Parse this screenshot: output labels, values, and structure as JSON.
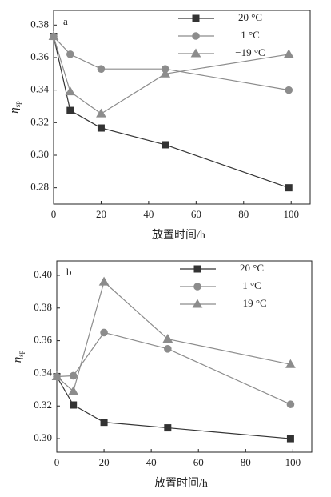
{
  "chart_data": [
    {
      "type": "line",
      "annotation": "a",
      "x_label": "放置时间/h",
      "y_label": "η",
      "y_label_sub": "sp",
      "x": [
        0,
        7,
        20,
        47,
        99
      ],
      "series": [
        {
          "name": "20 °C",
          "color": "#333333",
          "marker": "square",
          "values": [
            0.373,
            0.3275,
            0.3167,
            0.3064,
            0.28
          ]
        },
        {
          "name": "1 °C",
          "color": "#8c8c8c",
          "marker": "circle",
          "values": [
            0.373,
            0.362,
            0.353,
            0.353,
            0.34
          ]
        },
        {
          "name": "−19 °C",
          "color": "#8c8c8c",
          "marker": "triangle",
          "values": [
            0.373,
            0.339,
            0.3255,
            0.35,
            0.362
          ]
        }
      ],
      "xlim": [
        0,
        108
      ],
      "xticks": [
        0,
        20,
        40,
        60,
        80,
        100
      ],
      "ylim": [
        0.27,
        0.389
      ],
      "yticks": [
        0.28,
        {
          "value": 0.3,
          "label": "0.30"
        },
        0.32,
        0.34,
        0.36,
        0.38
      ],
      "grid": false,
      "legend": "upper right"
    },
    {
      "type": "line",
      "annotation": "b",
      "x_label": "放置时间/h",
      "y_label": "η",
      "y_label_sub": "sp",
      "x": [
        0,
        7,
        20,
        47,
        99
      ],
      "series": [
        {
          "name": "20 °C",
          "color": "#333333",
          "marker": "square",
          "values": [
            0.338,
            0.3206,
            0.31,
            0.3066,
            0.3
          ]
        },
        {
          "name": "1 °C",
          "color": "#8c8c8c",
          "marker": "circle",
          "values": [
            0.338,
            0.3385,
            0.365,
            0.355,
            0.321
          ]
        },
        {
          "name": "−19 °C",
          "color": "#8c8c8c",
          "marker": "triangle",
          "values": [
            0.338,
            0.329,
            0.396,
            0.361,
            0.3455
          ]
        }
      ],
      "xlim": [
        0,
        108
      ],
      "xticks": [
        0,
        20,
        40,
        60,
        80,
        100
      ],
      "ylim": [
        0.2917,
        0.4088
      ],
      "yticks": [
        {
          "value": 0.3,
          "label": "0.30"
        },
        0.32,
        0.34,
        0.36,
        0.38,
        {
          "value": 0.4,
          "label": "0.40"
        }
      ],
      "grid": false,
      "legend": "upper right"
    }
  ]
}
